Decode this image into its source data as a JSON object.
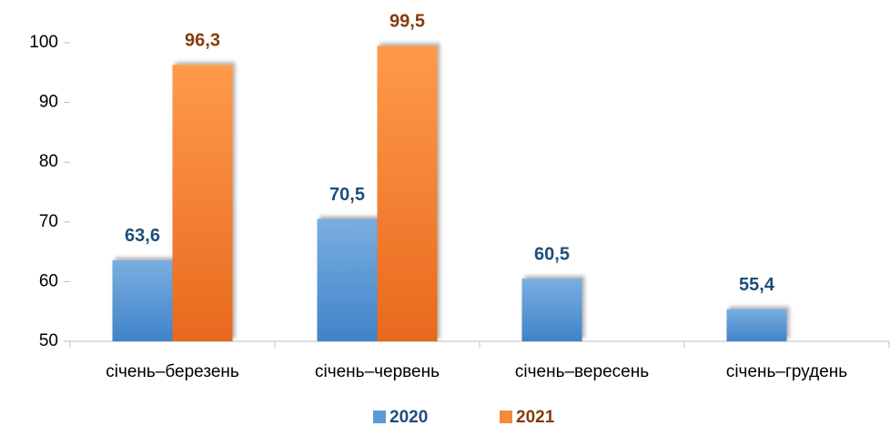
{
  "chart_data": {
    "type": "bar",
    "categories": [
      "січень–березень",
      "січень–червень",
      "січень–вересень",
      "січень–грудень"
    ],
    "series": [
      {
        "name": "2020",
        "color": "#5b9bd5",
        "label_color": "#1f4e79",
        "values": [
          63.6,
          70.5,
          60.5,
          55.4
        ],
        "value_labels": [
          "63,6",
          "70,5",
          "60,5",
          "55,4"
        ]
      },
      {
        "name": "2021",
        "color": "#f58a3a",
        "label_color": "#843c0c",
        "values": [
          96.3,
          99.5,
          null,
          null
        ],
        "value_labels": [
          "96,3",
          "99,5",
          null,
          null
        ]
      }
    ],
    "ylim": [
      50,
      100
    ],
    "yticks": [
      50,
      60,
      70,
      80,
      90,
      100
    ],
    "grid": false,
    "legend": "bottom"
  }
}
